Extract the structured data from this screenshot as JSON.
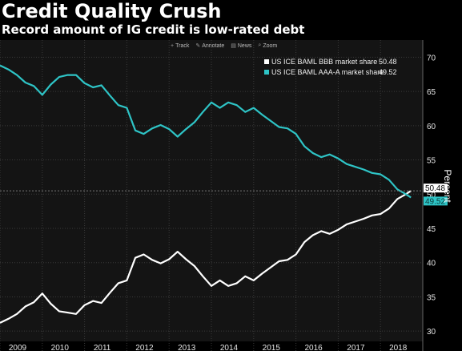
{
  "header": {
    "title": "Credit Quality Crush",
    "subtitle": "Record amount of IG credit is low-rated debt"
  },
  "toolbar": {
    "items": [
      {
        "label": "Track",
        "icon": "track-icon"
      },
      {
        "label": "Annotate",
        "icon": "annotate-icon"
      },
      {
        "label": "News",
        "icon": "news-icon"
      },
      {
        "label": "Zoom",
        "icon": "zoom-icon"
      }
    ]
  },
  "chart_data": {
    "type": "line",
    "title": "Credit Quality Crush",
    "subtitle": "Record amount of IG credit is low-rated debt",
    "xlabel": "",
    "ylabel": "Percent",
    "xlim": [
      2009.0,
      2019.0
    ],
    "ylim": [
      28.5,
      72.5
    ],
    "x_ticks": [
      "2009",
      "2010",
      "2011",
      "2012",
      "2013",
      "2014",
      "2015",
      "2016",
      "2017",
      "2018"
    ],
    "y_ticks": [
      30,
      35,
      40,
      45,
      50,
      55,
      60,
      65,
      70
    ],
    "grid": true,
    "legend": "top-right",
    "series": [
      {
        "name": "US ICE BAML BBB market share",
        "color": "#ffffff",
        "last_label": "50.48",
        "last_value": 50.48,
        "points": [
          [
            2009.0,
            31.2
          ],
          [
            2009.2,
            31.8
          ],
          [
            2009.4,
            32.5
          ],
          [
            2009.6,
            33.6
          ],
          [
            2009.8,
            34.2
          ],
          [
            2010.0,
            35.5
          ],
          [
            2010.2,
            34.0
          ],
          [
            2010.4,
            32.9
          ],
          [
            2010.6,
            32.7
          ],
          [
            2010.8,
            32.5
          ],
          [
            2011.0,
            33.8
          ],
          [
            2011.2,
            34.4
          ],
          [
            2011.4,
            34.1
          ],
          [
            2011.6,
            35.6
          ],
          [
            2011.8,
            37.0
          ],
          [
            2012.0,
            37.4
          ],
          [
            2012.2,
            40.7
          ],
          [
            2012.4,
            41.2
          ],
          [
            2012.6,
            40.4
          ],
          [
            2012.8,
            39.9
          ],
          [
            2013.0,
            40.5
          ],
          [
            2013.2,
            41.6
          ],
          [
            2013.4,
            40.5
          ],
          [
            2013.6,
            39.5
          ],
          [
            2013.8,
            38.0
          ],
          [
            2014.0,
            36.6
          ],
          [
            2014.2,
            37.4
          ],
          [
            2014.4,
            36.6
          ],
          [
            2014.6,
            37.0
          ],
          [
            2014.8,
            38.0
          ],
          [
            2015.0,
            37.4
          ],
          [
            2015.2,
            38.4
          ],
          [
            2015.4,
            39.3
          ],
          [
            2015.6,
            40.2
          ],
          [
            2015.8,
            40.4
          ],
          [
            2016.0,
            41.2
          ],
          [
            2016.2,
            43.0
          ],
          [
            2016.4,
            44.0
          ],
          [
            2016.6,
            44.6
          ],
          [
            2016.8,
            44.2
          ],
          [
            2017.0,
            44.8
          ],
          [
            2017.2,
            45.6
          ],
          [
            2017.4,
            46.0
          ],
          [
            2017.6,
            46.4
          ],
          [
            2017.8,
            46.9
          ],
          [
            2018.0,
            47.1
          ],
          [
            2018.2,
            47.9
          ],
          [
            2018.4,
            49.3
          ],
          [
            2018.6,
            50.0
          ],
          [
            2018.72,
            50.48
          ]
        ]
      },
      {
        "name": "US ICE BAML AAA-A market share",
        "color": "#2ec4c6",
        "last_label": "49.52",
        "last_value": 49.52,
        "points": [
          [
            2009.0,
            68.8
          ],
          [
            2009.2,
            68.2
          ],
          [
            2009.4,
            67.4
          ],
          [
            2009.6,
            66.3
          ],
          [
            2009.8,
            65.8
          ],
          [
            2010.0,
            64.5
          ],
          [
            2010.2,
            66.0
          ],
          [
            2010.4,
            67.1
          ],
          [
            2010.6,
            67.4
          ],
          [
            2010.8,
            67.4
          ],
          [
            2011.0,
            66.2
          ],
          [
            2011.2,
            65.6
          ],
          [
            2011.4,
            65.9
          ],
          [
            2011.6,
            64.4
          ],
          [
            2011.8,
            63.0
          ],
          [
            2012.0,
            62.6
          ],
          [
            2012.2,
            59.3
          ],
          [
            2012.4,
            58.8
          ],
          [
            2012.6,
            59.6
          ],
          [
            2012.8,
            60.1
          ],
          [
            2013.0,
            59.5
          ],
          [
            2013.2,
            58.4
          ],
          [
            2013.4,
            59.5
          ],
          [
            2013.6,
            60.5
          ],
          [
            2013.8,
            62.0
          ],
          [
            2014.0,
            63.4
          ],
          [
            2014.2,
            62.6
          ],
          [
            2014.4,
            63.4
          ],
          [
            2014.6,
            63.0
          ],
          [
            2014.8,
            62.0
          ],
          [
            2015.0,
            62.6
          ],
          [
            2015.2,
            61.6
          ],
          [
            2015.4,
            60.7
          ],
          [
            2015.6,
            59.8
          ],
          [
            2015.8,
            59.6
          ],
          [
            2016.0,
            58.8
          ],
          [
            2016.2,
            57.0
          ],
          [
            2016.4,
            56.0
          ],
          [
            2016.6,
            55.4
          ],
          [
            2016.8,
            55.8
          ],
          [
            2017.0,
            55.2
          ],
          [
            2017.2,
            54.4
          ],
          [
            2017.4,
            54.0
          ],
          [
            2017.6,
            53.6
          ],
          [
            2017.8,
            53.1
          ],
          [
            2018.0,
            52.9
          ],
          [
            2018.2,
            52.1
          ],
          [
            2018.4,
            50.7
          ],
          [
            2018.6,
            50.0
          ],
          [
            2018.72,
            49.52
          ]
        ]
      }
    ]
  }
}
